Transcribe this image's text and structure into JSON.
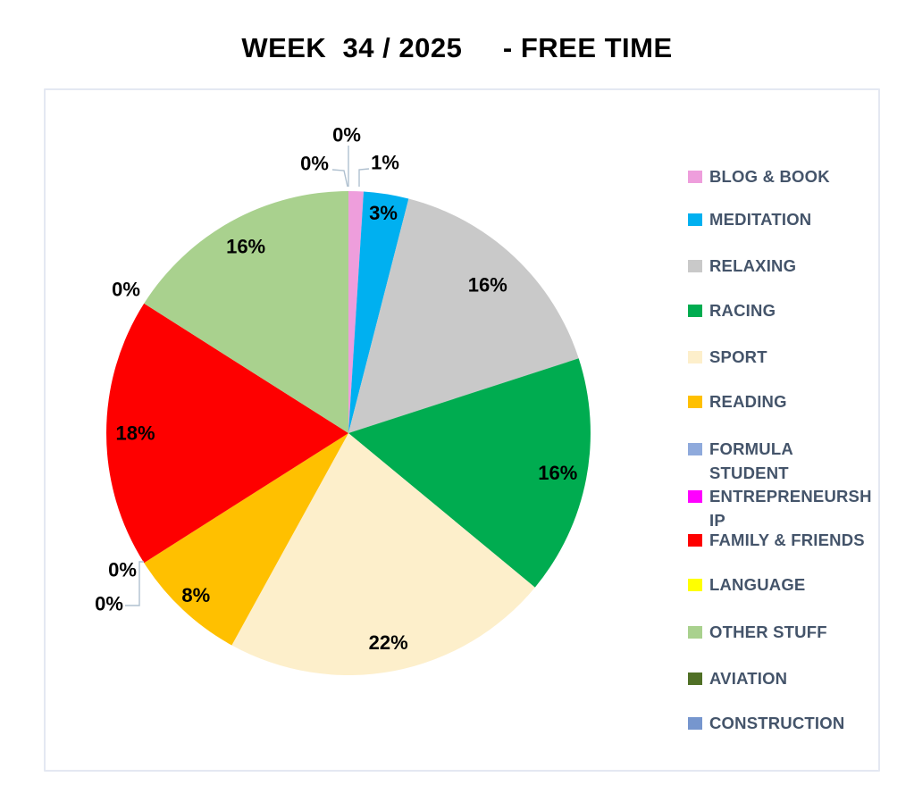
{
  "title": {
    "text": "WEEK  34 / 2025     - FREE TIME",
    "color": "#000000"
  },
  "chart_data": {
    "type": "pie",
    "title": "WEEK 34 / 2025 - FREE TIME",
    "unit": "percent",
    "legend_position": "right",
    "data_labels": "outside-for-small-slices",
    "legend_text_color": "#44546A",
    "leader_line_color": "#AFC0CF",
    "frame_border_color": "#E4E8F2",
    "slices": [
      {
        "label": "BLOG & BOOK",
        "value": 1,
        "display": "1%",
        "color": "#EE9EDC"
      },
      {
        "label": "MEDITATION",
        "value": 3,
        "display": "3%",
        "color": "#00B0F0"
      },
      {
        "label": "RELAXING",
        "value": 16,
        "display": "16%",
        "color": "#C9C9C9"
      },
      {
        "label": "RACING",
        "value": 16,
        "display": "16%",
        "color": "#00AC50"
      },
      {
        "label": "SPORT",
        "value": 22,
        "display": "22%",
        "color": "#FDEFCB"
      },
      {
        "label": "READING",
        "value": 8,
        "display": "8%",
        "color": "#FFC000"
      },
      {
        "label": "FORMULA STUDENT",
        "value": 0,
        "display": "0%",
        "color": "#8FAADC",
        "display_lines": [
          "FORMULA",
          "STUDENT"
        ]
      },
      {
        "label": "ENTREPRENEURSHIP",
        "value": 0,
        "display": "0%",
        "color": "#FF00FF",
        "display_lines": [
          "ENTREPRENEURSH",
          "IP"
        ]
      },
      {
        "label": "FAMILY & FRIENDS",
        "value": 18,
        "display": "18%",
        "color": "#FE0000"
      },
      {
        "label": "LANGUAGE",
        "value": 0,
        "display": "0%",
        "color": "#FFFF00"
      },
      {
        "label": "OTHER STUFF",
        "value": 16,
        "display": "16%",
        "color": "#A9D18E"
      },
      {
        "label": "AVIATION",
        "value": 0,
        "display": "0%",
        "color": "#507026"
      },
      {
        "label": "CONSTRUCTION",
        "value": 0,
        "display": "0%",
        "color": "#7696CE"
      }
    ]
  }
}
